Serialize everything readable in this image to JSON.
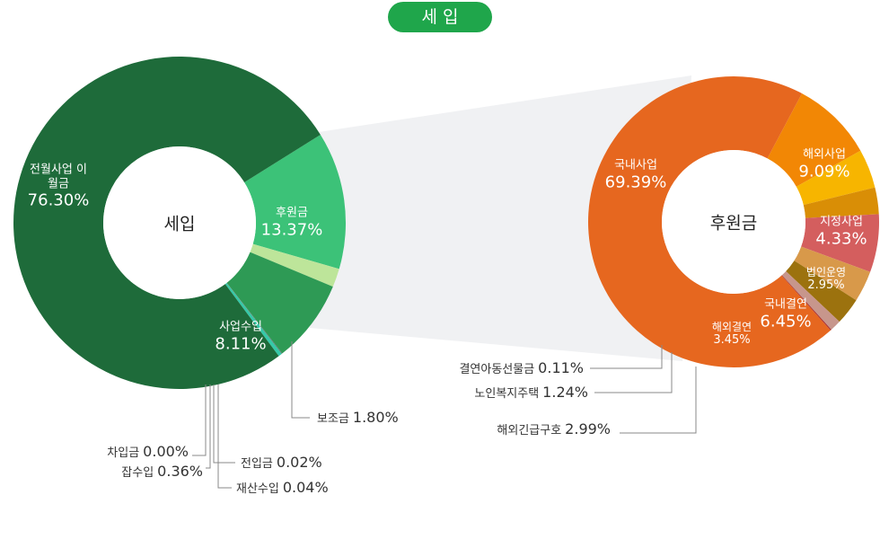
{
  "header": {
    "title": "세 입"
  },
  "chart_data": [
    {
      "type": "donut",
      "center_label": "세입",
      "categories": [
        "후원금",
        "보조금",
        "사업수입",
        "전입금",
        "재산수입",
        "잡수입",
        "차입금",
        "전월사업 이월금"
      ],
      "values": [
        13.37,
        1.8,
        8.11,
        0.02,
        0.04,
        0.36,
        0.0,
        76.3
      ],
      "value_labels": [
        "13.37%",
        "1.80%",
        "8.11%",
        "0.02%",
        "0.04%",
        "0.36%",
        "0.00%",
        "76.30%"
      ],
      "colors": [
        "#3cc278",
        "#bde59a",
        "#2e9a55",
        "#5a7a66",
        "#4a4a4a",
        "#35c9a8",
        "#6fd12a",
        "#1e6b3a"
      ]
    },
    {
      "type": "donut",
      "center_label": "후원금",
      "categories": [
        "해외사업",
        "지정사업",
        "법인운영",
        "국내결연",
        "해외결연",
        "해외긴급구호",
        "노인복지주택",
        "결연아동선물금",
        "국내사업"
      ],
      "values": [
        9.09,
        4.33,
        2.95,
        6.45,
        3.45,
        2.99,
        1.24,
        0.11,
        69.39
      ],
      "value_labels": [
        "9.09%",
        "4.33%",
        "2.95%",
        "6.45%",
        "3.45%",
        "2.99%",
        "1.24%",
        "0.11%",
        "69.39%"
      ],
      "colors": [
        "#f28705",
        "#f7b500",
        "#d98e06",
        "#d45e5e",
        "#d8994a",
        "#9c720e",
        "#c7968c",
        "#a3242a",
        "#e6671f"
      ]
    }
  ]
}
